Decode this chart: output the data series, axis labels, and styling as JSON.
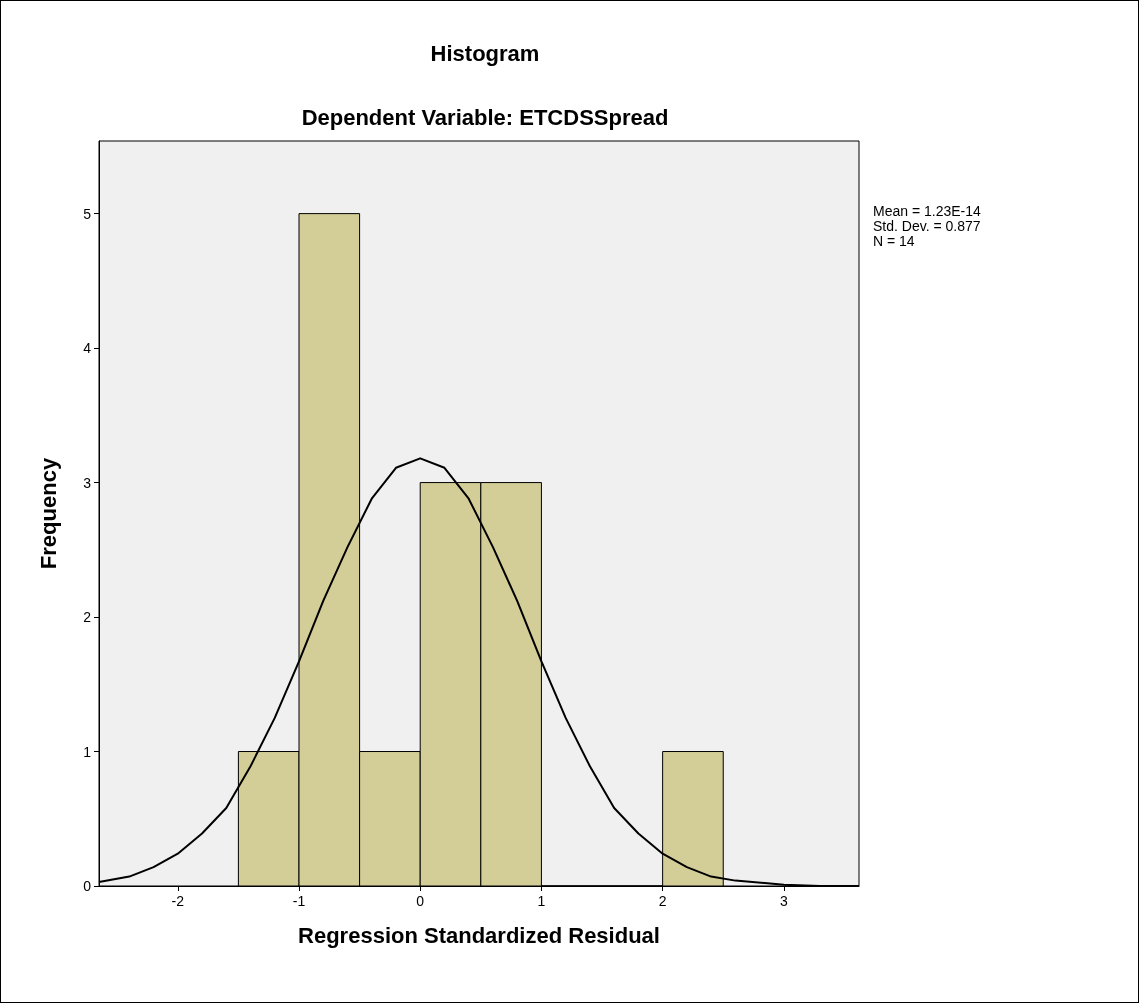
{
  "chart_data": {
    "type": "histogram",
    "title": "Histogram",
    "subtitle": "Dependent Variable: ETCDSSpread",
    "xlabel": "Regression Standardized Residual",
    "ylabel": "Frequency",
    "bins": [
      -1.5,
      -1,
      -0.5,
      0,
      0.5,
      1,
      1.5,
      2,
      2.5
    ],
    "values": [
      1,
      5,
      1,
      3,
      3,
      0,
      0,
      1
    ],
    "color": "#d3ce97",
    "series": [
      {
        "type": "line",
        "color": "#000000",
        "marker": "none",
        "x": [
          -2.65,
          -2.4,
          -2.2,
          -2.0,
          -1.8,
          -1.6,
          -1.4,
          -1.2,
          -1.0,
          -0.8,
          -0.6,
          -0.4,
          -0.2,
          0,
          0.2,
          0.4,
          0.6,
          0.8,
          1.0,
          1.2,
          1.4,
          1.6,
          1.8,
          2.0,
          2.2,
          2.4,
          2.6,
          3.0,
          3.3,
          3.62
        ],
        "values": [
          0.03,
          0.07,
          0.14,
          0.24,
          0.39,
          0.58,
          0.89,
          1.25,
          1.67,
          2.12,
          2.52,
          2.88,
          3.11,
          3.18,
          3.11,
          2.88,
          2.52,
          2.12,
          1.67,
          1.25,
          0.89,
          0.58,
          0.39,
          0.24,
          0.14,
          0.07,
          0.04,
          0.01,
          0.0,
          0.0
        ]
      }
    ],
    "xlim": [
      -2.65,
      3.62
    ],
    "xticks": [
      -2,
      -1,
      0,
      1,
      2,
      3
    ],
    "ylim": [
      0,
      5.54
    ],
    "yticks": [
      0,
      1,
      2,
      3,
      4,
      5
    ],
    "grid": false,
    "annotations": [
      "Mean = 1.23E-14",
      "Std. Dev. = 0.877",
      "N = 14"
    ]
  }
}
